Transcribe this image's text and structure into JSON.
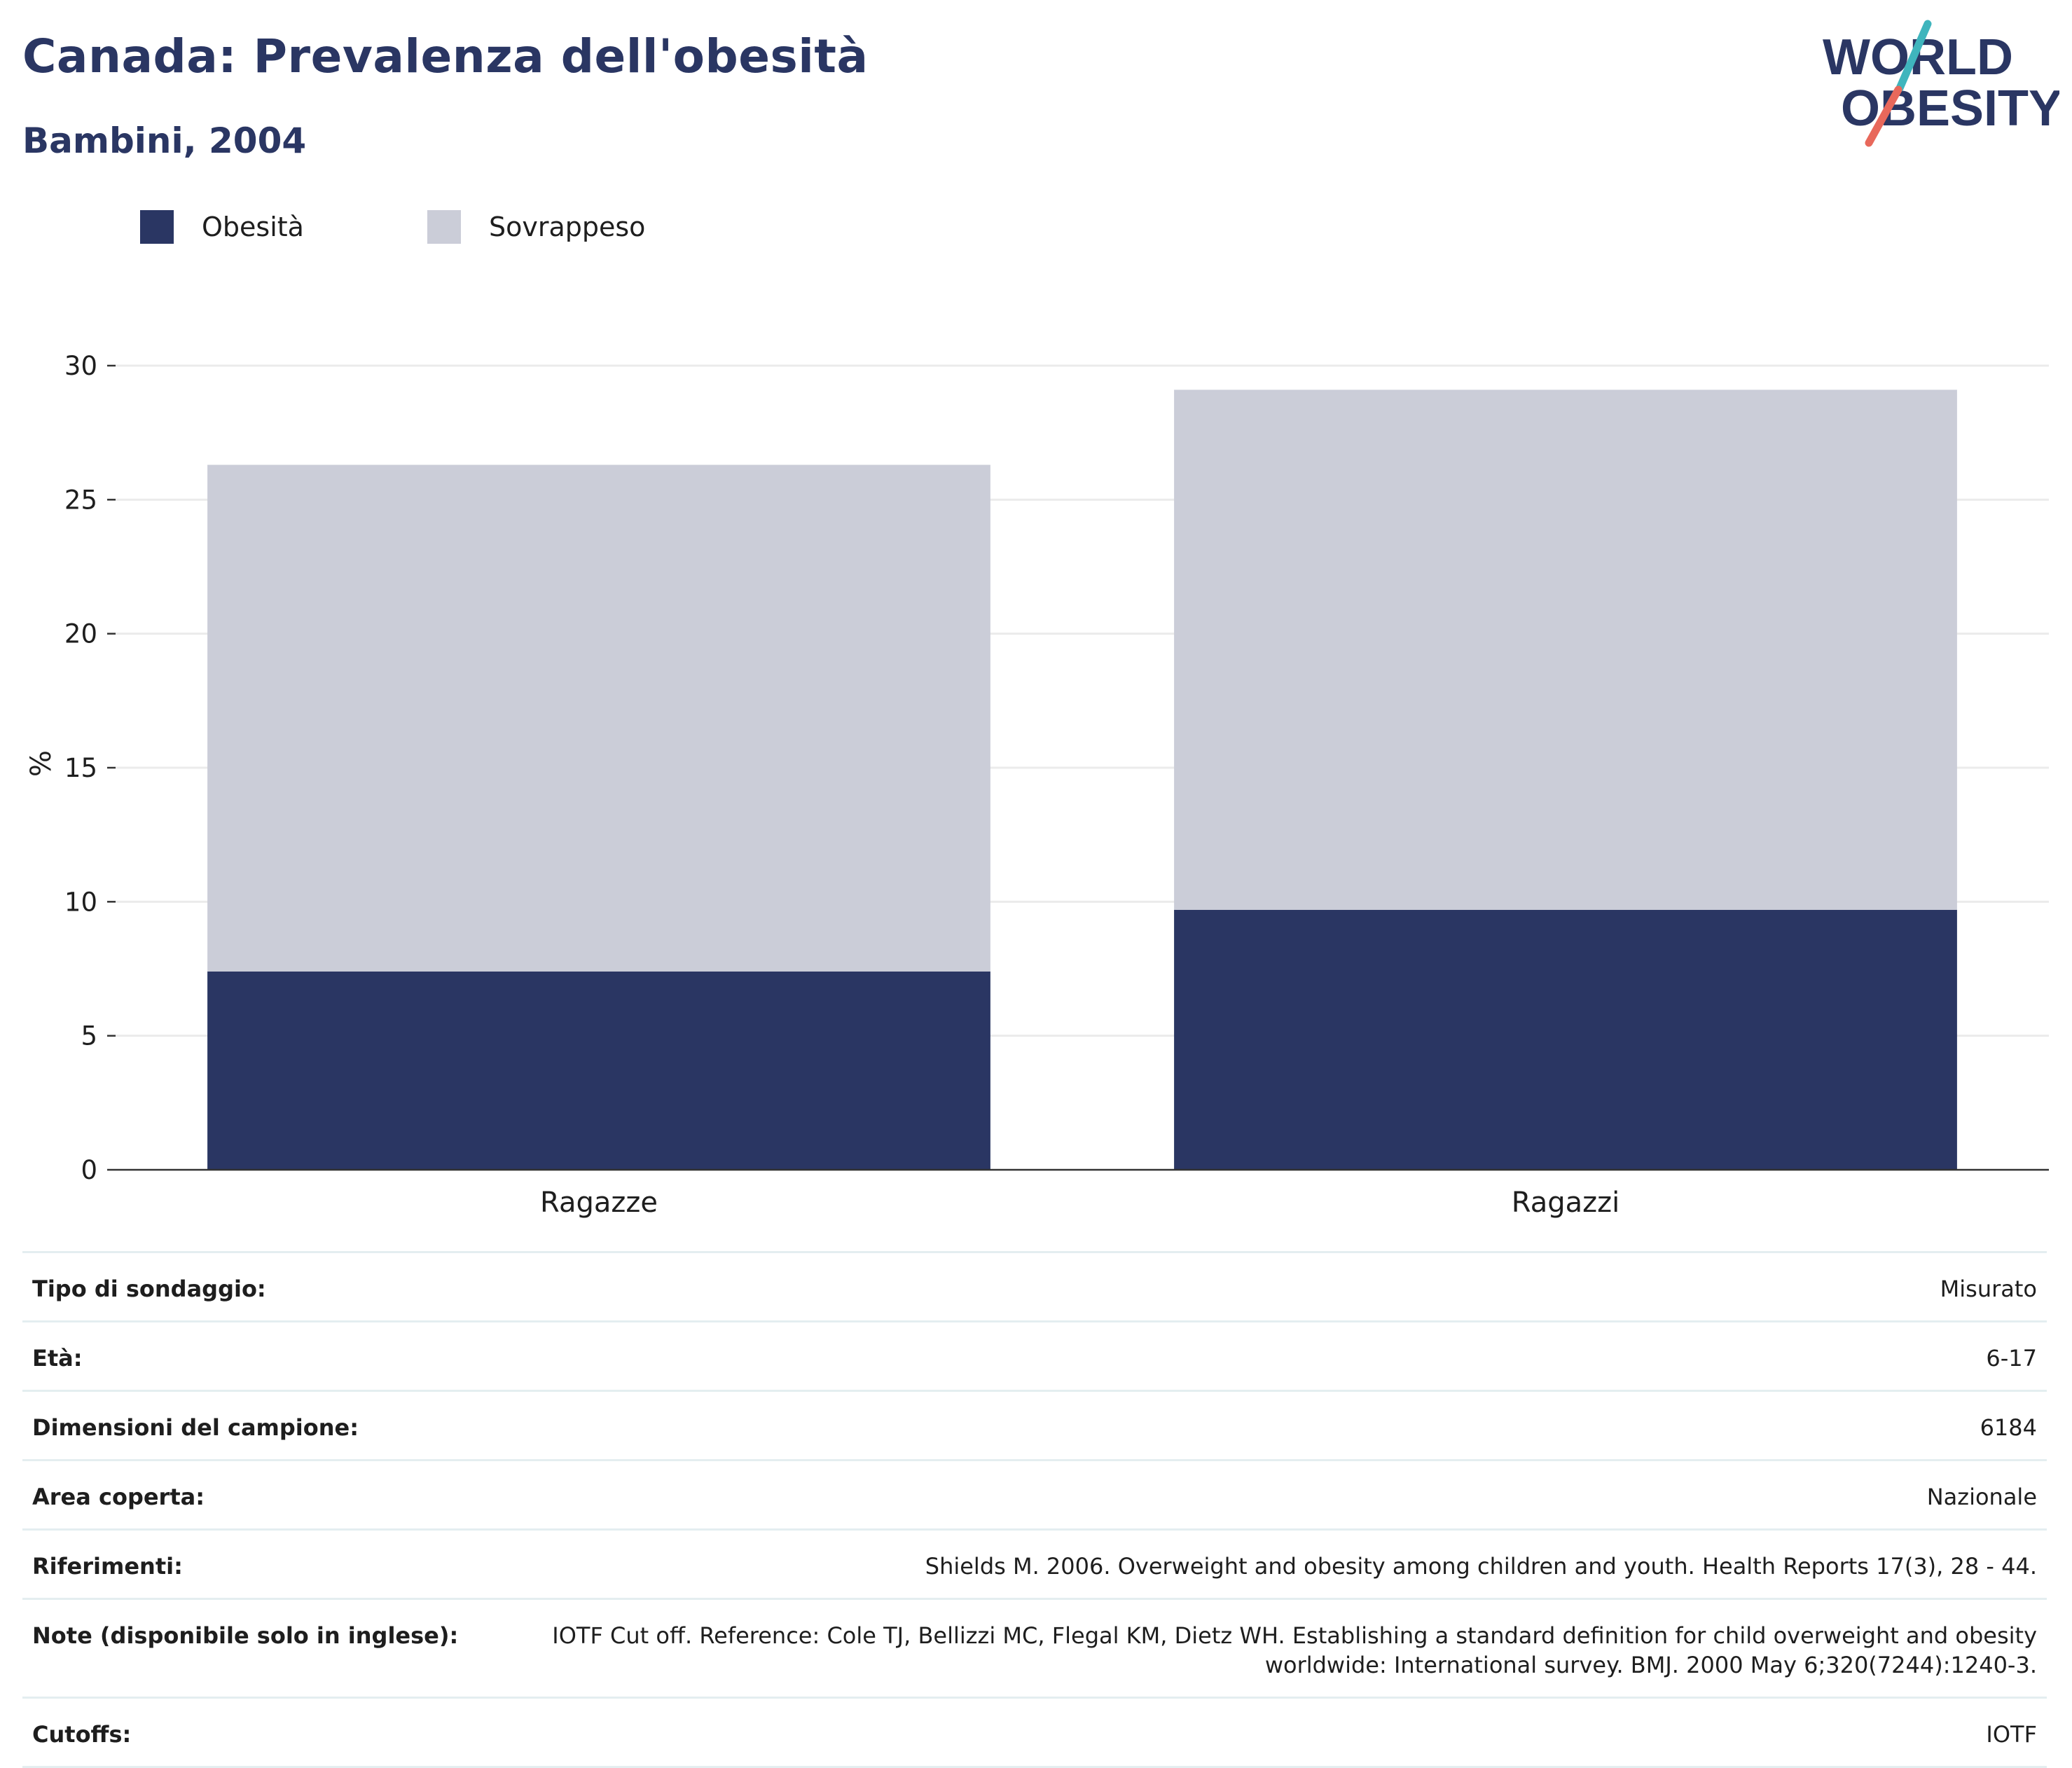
{
  "header": {
    "title": "Canada: Prevalenza dell'obesità",
    "subtitle": "Bambini, 2004"
  },
  "logo": {
    "line1": "WORLD",
    "line2": "OBESITY",
    "colors": {
      "text": "#2a3663",
      "slash_teal": "#3fb5bd",
      "slash_coral": "#e8685b"
    }
  },
  "legend": [
    {
      "label": "Obesità",
      "color": "#2a3663"
    },
    {
      "label": "Sovrappeso",
      "color": "#cbcdd8"
    }
  ],
  "chart_data": {
    "type": "bar",
    "stacked": true,
    "categories": [
      "Ragazze",
      "Ragazzi"
    ],
    "series": [
      {
        "name": "Obesità",
        "values": [
          7.4,
          9.7
        ],
        "color": "#2a3663"
      },
      {
        "name": "Sovrappeso",
        "values": [
          18.9,
          19.4
        ],
        "color": "#cbcdd8"
      }
    ],
    "ylabel": "%",
    "ylim": [
      0,
      30
    ],
    "yticks": [
      0,
      5,
      10,
      15,
      20,
      25,
      30
    ],
    "grid": true,
    "legend_position": "top-left"
  },
  "info": [
    {
      "label": "Tipo di sondaggio:",
      "value": "Misurato"
    },
    {
      "label": "Età:",
      "value": "6-17"
    },
    {
      "label": "Dimensioni del campione:",
      "value": "6184"
    },
    {
      "label": "Area coperta:",
      "value": "Nazionale"
    },
    {
      "label": "Riferimenti:",
      "value": "Shields M. 2006. Overweight and obesity among children and youth. Health Reports 17(3), 28 - 44."
    },
    {
      "label": "Note (disponibile solo in inglese):",
      "value": "IOTF Cut off. Reference: Cole TJ, Bellizzi MC, Flegal KM, Dietz WH. Establishing a standard definition for child overweight and obesity worldwide: International survey. BMJ. 2000 May 6;320(7244):1240-3."
    },
    {
      "label": "Cutoffs:",
      "value": "IOTF"
    }
  ]
}
